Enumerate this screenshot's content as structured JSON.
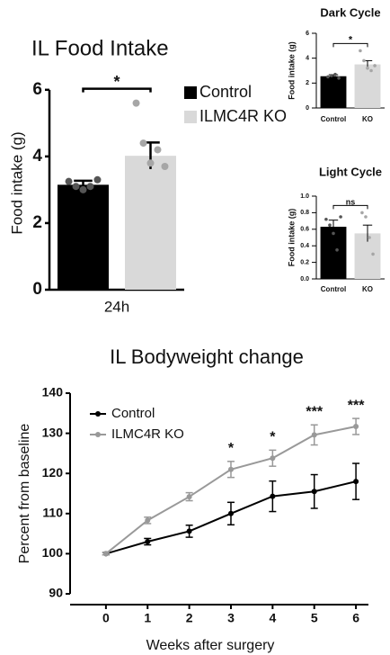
{
  "chart_data": [
    {
      "type": "bar",
      "title": "IL Food Intake",
      "y_label": "Food intake (g)",
      "categories": [
        "24h"
      ],
      "series": [
        {
          "name": "Control",
          "color": "#000000",
          "values": [
            3.15
          ],
          "errors": [
            0.12
          ],
          "points": [
            [
              3.25,
              3.1,
              3.0,
              3.1,
              3.3
            ]
          ]
        },
        {
          "name": "ILMC4R KO",
          "color": "#d9d9d9",
          "values": [
            4.02
          ],
          "errors": [
            0.4
          ],
          "points": [
            [
              5.6,
              4.4,
              3.8,
              4.2,
              3.7
            ]
          ]
        }
      ],
      "ylim": [
        0,
        6.4
      ],
      "yticks": [
        0,
        2,
        4,
        6
      ],
      "significance": [
        {
          "text": "*"
        }
      ]
    },
    {
      "type": "bar",
      "title": "Dark Cycle",
      "y_label": "Food intake (g)",
      "categories": [
        "Control",
        "KO"
      ],
      "values": [
        2.55,
        3.5
      ],
      "errors": [
        0.12,
        0.3
      ],
      "colors": [
        "#000000",
        "#d9d9d9"
      ],
      "points": [
        [
          2.5,
          2.6,
          2.7,
          2.4
        ],
        [
          4.6,
          3.8,
          3.2,
          3.0,
          3.4
        ]
      ],
      "ylim": [
        0,
        6
      ],
      "yticks": [
        0,
        2,
        4,
        6
      ],
      "significance": [
        {
          "text": "*"
        }
      ]
    },
    {
      "type": "bar",
      "title": "Light Cycle",
      "y_label": "Food intake (g)",
      "categories": [
        "Control",
        "KO"
      ],
      "values": [
        0.63,
        0.55
      ],
      "errors": [
        0.08,
        0.1
      ],
      "colors": [
        "#000000",
        "#d9d9d9"
      ],
      "points": [
        [
          0.72,
          0.65,
          0.55,
          0.35,
          0.75
        ],
        [
          0.8,
          0.75,
          0.5,
          0.3
        ]
      ],
      "ylim": [
        0,
        1.0
      ],
      "yticks": [
        {
          "value": 0,
          "label": "0.0"
        },
        0.2,
        0.4,
        0.6,
        0.8,
        {
          "value": 1,
          "label": "1.0"
        }
      ],
      "significance": [
        {
          "text": "ns"
        }
      ]
    },
    {
      "type": "line",
      "title": "IL Bodyweight change",
      "x_label": "Weeks after surgery",
      "y_label": "Percent from baseline",
      "x": [
        0,
        1,
        2,
        3,
        4,
        5,
        6
      ],
      "series": [
        {
          "name": "Control",
          "color": "#000000",
          "values": [
            100,
            103,
            105.6,
            110,
            114.3,
            115.5,
            118
          ],
          "errors": [
            0.3,
            0.8,
            1.5,
            2.8,
            3.8,
            4.2,
            4.5
          ]
        },
        {
          "name": "ILMC4R KO",
          "color": "#999999",
          "values": [
            100,
            108.3,
            114.2,
            121,
            123.8,
            129.6,
            131.7
          ],
          "errors": [
            0.3,
            0.8,
            1.0,
            2.0,
            2.0,
            2.5,
            2.0
          ]
        }
      ],
      "xlim": [
        -0.86,
        6.3
      ],
      "xticks": [
        0,
        1,
        2,
        3,
        4,
        5,
        6
      ],
      "ylim": [
        90,
        140
      ],
      "yticks": [
        90,
        100,
        110,
        120,
        130,
        140
      ],
      "significance": [
        {
          "x": 3,
          "text": "*"
        },
        {
          "x": 4,
          "text": "*"
        },
        {
          "x": 5,
          "text": "***"
        },
        {
          "x": 6,
          "text": "***"
        }
      ]
    }
  ]
}
